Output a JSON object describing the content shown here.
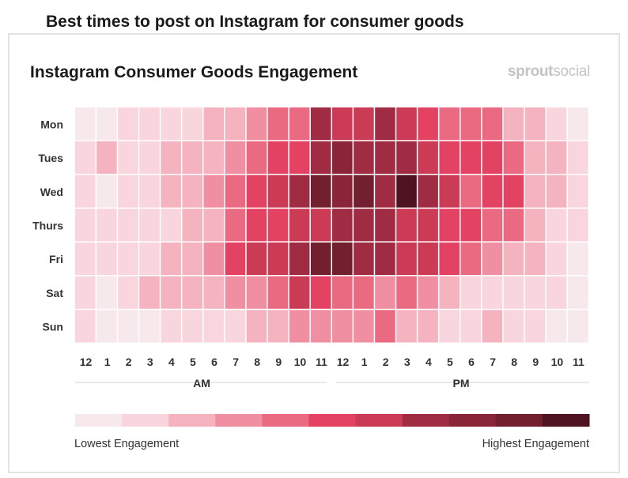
{
  "page_title": "Best times to post on Instagram for consumer goods",
  "logo": {
    "part1": "sprout",
    "part2": "social"
  },
  "chart_data": {
    "type": "heatmap",
    "title": "Instagram Consumer Goods Engagement",
    "rows": [
      "Mon",
      "Tues",
      "Wed",
      "Thurs",
      "Fri",
      "Sat",
      "Sun"
    ],
    "columns": [
      "12",
      "1",
      "2",
      "3",
      "4",
      "5",
      "6",
      "7",
      "8",
      "9",
      "10",
      "11",
      "12",
      "1",
      "2",
      "3",
      "4",
      "5",
      "6",
      "7",
      "8",
      "9",
      "10",
      "11"
    ],
    "column_groups": [
      {
        "label": "AM"
      },
      {
        "label": "PM"
      }
    ],
    "scale_colors": [
      "#f7e8ec",
      "#f9d6dd",
      "#f5b3c0",
      "#ef8fa1",
      "#ea6a81",
      "#e44262",
      "#cb3b55",
      "#9f2c42",
      "#8a2438",
      "#722030",
      "#4f1220"
    ],
    "legend": {
      "low_label": "Lowest Engagement",
      "high_label": "Highest Engagement"
    },
    "values": [
      [
        0,
        0,
        1,
        1,
        1,
        1,
        2,
        2,
        3,
        4,
        4,
        7,
        6,
        6,
        7,
        6,
        5,
        4,
        4,
        4,
        2,
        2,
        1,
        0
      ],
      [
        1,
        2,
        1,
        1,
        2,
        2,
        2,
        3,
        4,
        5,
        5,
        7,
        8,
        7,
        7,
        7,
        6,
        5,
        5,
        5,
        4,
        2,
        2,
        1
      ],
      [
        1,
        0,
        1,
        1,
        2,
        2,
        3,
        4,
        5,
        6,
        7,
        9,
        8,
        9,
        7,
        10,
        7,
        6,
        4,
        5,
        5,
        2,
        2,
        1
      ],
      [
        1,
        1,
        1,
        1,
        1,
        2,
        2,
        4,
        5,
        5,
        6,
        6,
        7,
        7,
        7,
        6,
        6,
        5,
        5,
        4,
        4,
        2,
        1,
        1
      ],
      [
        1,
        1,
        1,
        1,
        2,
        2,
        3,
        5,
        6,
        6,
        7,
        9,
        9,
        7,
        7,
        6,
        6,
        5,
        4,
        3,
        2,
        2,
        1,
        0
      ],
      [
        1,
        0,
        1,
        2,
        2,
        2,
        2,
        3,
        3,
        4,
        6,
        5,
        4,
        4,
        3,
        4,
        3,
        2,
        1,
        1,
        1,
        1,
        1,
        0
      ],
      [
        1,
        0,
        0,
        0,
        1,
        1,
        1,
        1,
        2,
        2,
        3,
        3,
        3,
        3,
        4,
        2,
        2,
        1,
        1,
        2,
        1,
        1,
        0,
        0
      ]
    ]
  }
}
